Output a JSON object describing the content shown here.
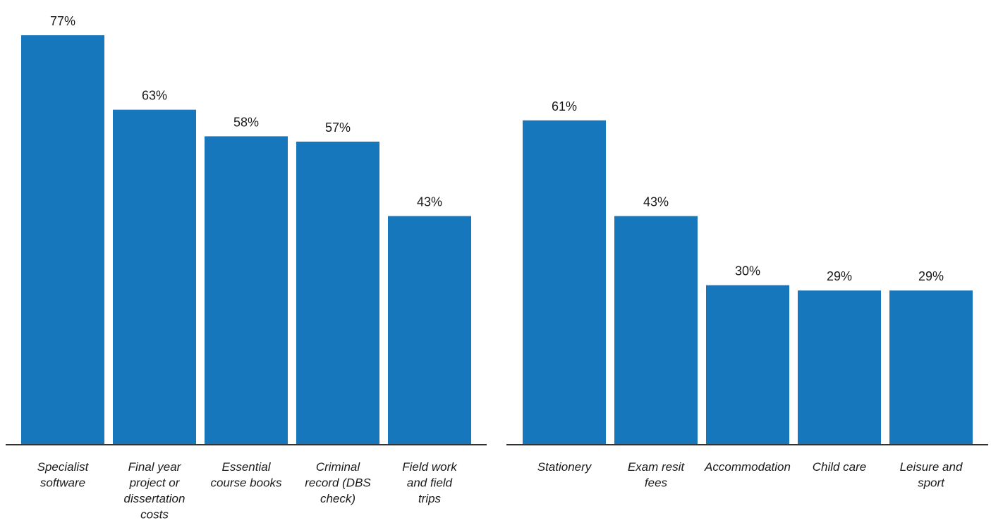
{
  "colors": {
    "bar": "#1777bd",
    "axis": "#333333"
  },
  "chart_data": [
    {
      "type": "bar",
      "title": "",
      "xlabel": "",
      "ylabel": "",
      "ylim": [
        0,
        80
      ],
      "unit": "%",
      "categories": [
        [
          "Specialist",
          "software"
        ],
        [
          "Final year",
          "project or",
          "dissertation",
          "costs"
        ],
        [
          "Essential",
          "course books"
        ],
        [
          "Criminal",
          "record (DBS",
          "check)"
        ],
        [
          "Field work",
          "and field",
          "trips"
        ]
      ],
      "values": [
        77,
        63,
        58,
        57,
        43
      ],
      "value_labels": [
        "77%",
        "63%",
        "58%",
        "57%",
        "43%"
      ]
    },
    {
      "type": "bar",
      "title": "",
      "xlabel": "",
      "ylabel": "",
      "ylim": [
        0,
        80
      ],
      "unit": "%",
      "categories": [
        [
          "Stationery"
        ],
        [
          "Exam resit",
          "fees"
        ],
        [
          "Accommodation"
        ],
        [
          "Child care"
        ],
        [
          "Leisure and",
          "sport"
        ]
      ],
      "values": [
        61,
        43,
        30,
        29,
        29
      ],
      "value_labels": [
        "61%",
        "43%",
        "30%",
        "29%",
        "29%"
      ]
    }
  ]
}
